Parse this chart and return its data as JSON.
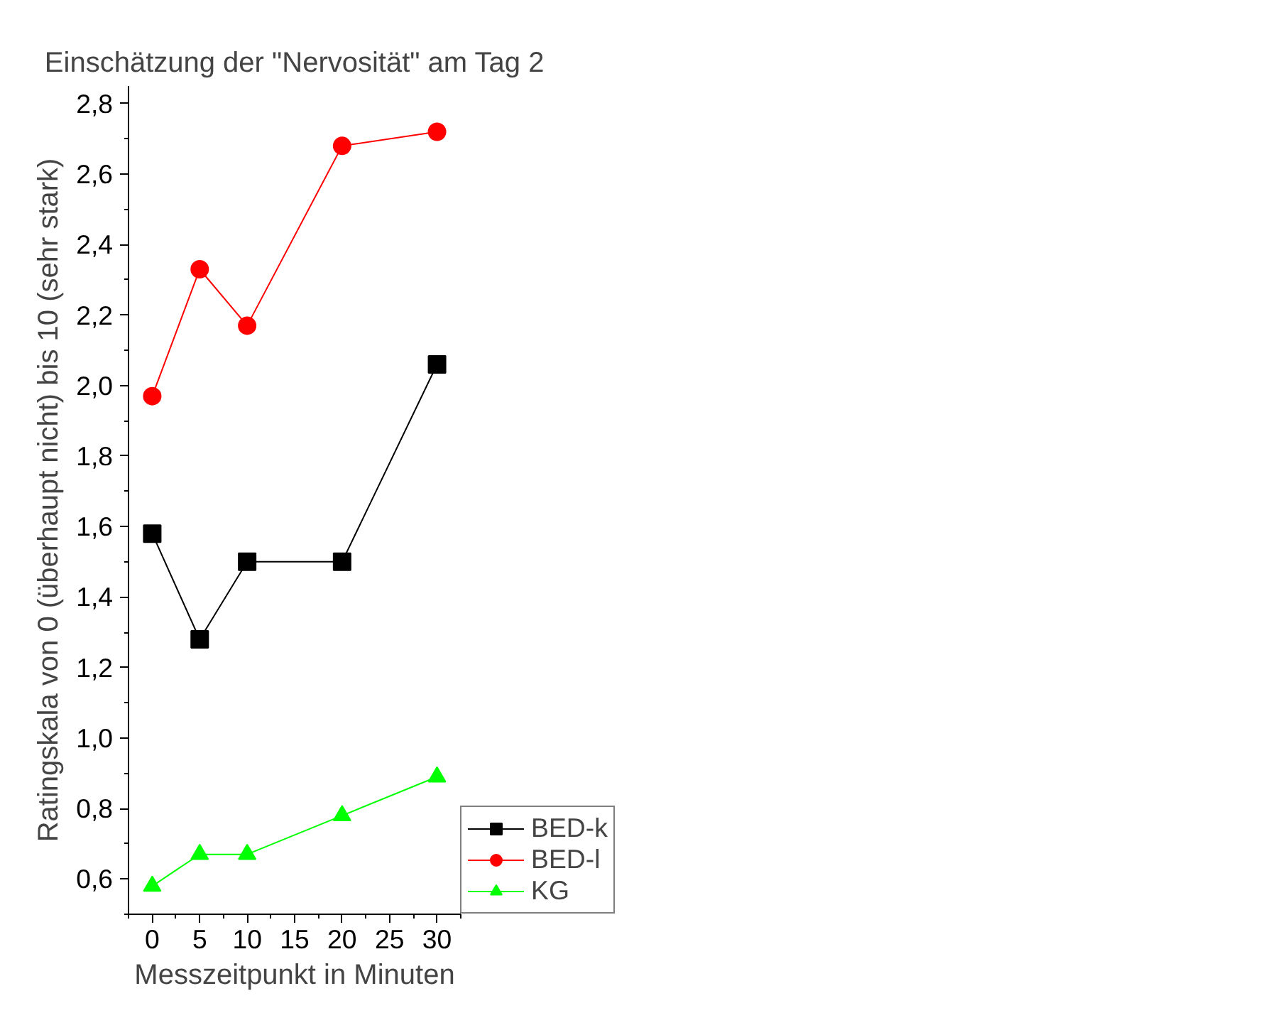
{
  "chart_data": {
    "type": "line",
    "title": "Einschätzung der \"Nervosität\" am Tag 2",
    "xlabel": "Messzeitpunkt in Minuten",
    "ylabel": "Ratingskala von 0 (überhaupt nicht) bis 10 (sehr stark)",
    "x": [
      0,
      5,
      10,
      20,
      30
    ],
    "series": [
      {
        "name": "BED-k",
        "color": "#000000",
        "marker": "square",
        "values": [
          1.58,
          1.28,
          1.5,
          1.5,
          2.06
        ]
      },
      {
        "name": "BED-l",
        "color": "#ff0000",
        "marker": "circle",
        "values": [
          1.97,
          2.33,
          2.17,
          2.68,
          2.72
        ]
      },
      {
        "name": "KG",
        "color": "#00ff00",
        "marker": "triangle",
        "values": [
          0.58,
          0.67,
          0.67,
          0.78,
          0.89
        ]
      }
    ],
    "xlim": [
      -2.5,
      32.5
    ],
    "ylim": [
      0.5,
      2.85
    ],
    "xticks": [
      0,
      5,
      10,
      15,
      20,
      25,
      30,
      {
        "value": -2.5,
        "label": null
      },
      {
        "value": 2.5,
        "label": null
      },
      {
        "value": 7.5,
        "label": null
      },
      {
        "value": 12.5,
        "label": null
      },
      {
        "value": 17.5,
        "label": null
      },
      {
        "value": 22.5,
        "label": null
      },
      {
        "value": 27.5,
        "label": null
      },
      {
        "value": 32.5,
        "label": null
      }
    ],
    "yticks": [
      {
        "value": 0.6,
        "label": "0,6"
      },
      {
        "value": 0.8,
        "label": "0,8"
      },
      {
        "value": 1.0,
        "label": "1,0"
      },
      {
        "value": 1.2,
        "label": "1,2"
      },
      {
        "value": 1.4,
        "label": "1,4"
      },
      {
        "value": 1.6,
        "label": "1,6"
      },
      {
        "value": 1.8,
        "label": "1,8"
      },
      {
        "value": 2.0,
        "label": "2,0"
      },
      {
        "value": 2.2,
        "label": "2,2"
      },
      {
        "value": 2.4,
        "label": "2,4"
      },
      {
        "value": 2.6,
        "label": "2,6"
      },
      {
        "value": 2.8,
        "label": "2,8"
      },
      {
        "value": 0.5,
        "label": null
      },
      {
        "value": 0.7,
        "label": null
      },
      {
        "value": 0.9,
        "label": null
      },
      {
        "value": 1.1,
        "label": null
      },
      {
        "value": 1.3,
        "label": null
      },
      {
        "value": 1.5,
        "label": null
      },
      {
        "value": 1.7,
        "label": null
      },
      {
        "value": 1.9,
        "label": null
      },
      {
        "value": 2.1,
        "label": null
      },
      {
        "value": 2.3,
        "label": null
      },
      {
        "value": 2.5,
        "label": null
      },
      {
        "value": 2.7,
        "label": null
      }
    ],
    "grid": false,
    "legend": "right",
    "line_style": "solid"
  }
}
